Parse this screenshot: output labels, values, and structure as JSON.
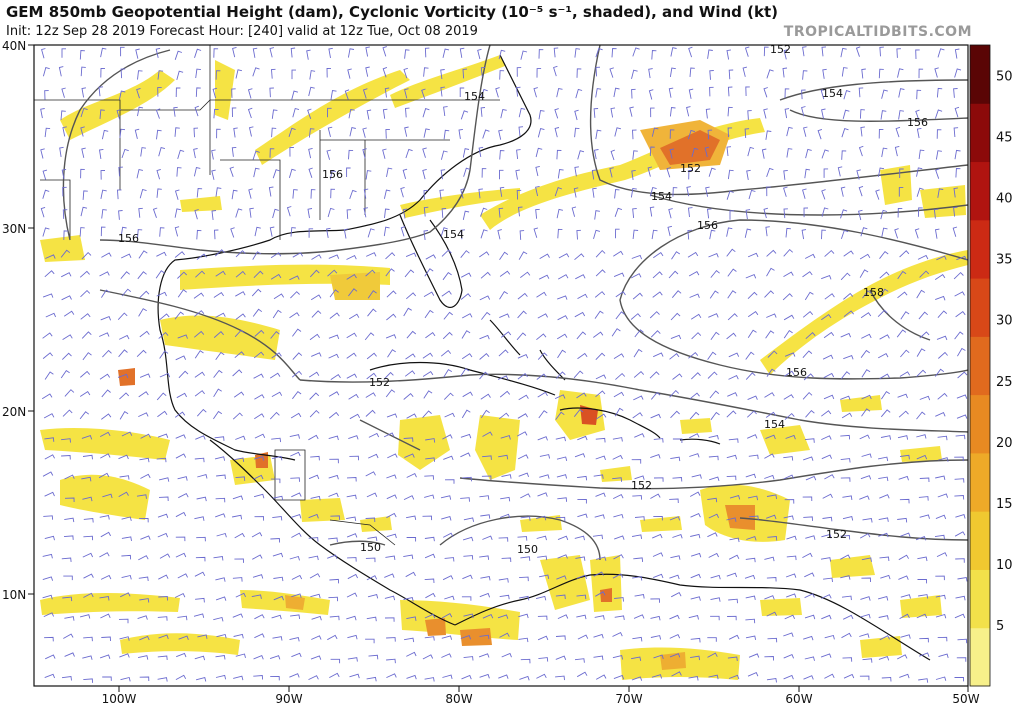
{
  "header": {
    "title": "GEM 850mb Geopotential Height (dam), Cyclonic Vorticity (10⁻⁵ s⁻¹, shaded), and Wind (kt)",
    "init": "Init: 12z Sep 28 2019   Forecast Hour: [240]   valid at 12z Tue, Oct 08 2019",
    "brand": "TROPICALTIDBITS.COM"
  },
  "axes": {
    "lat_labels": [
      "40N",
      "30N",
      "20N",
      "10N"
    ],
    "lon_labels": [
      "100W",
      "90W",
      "80W",
      "70W",
      "60W",
      "50W"
    ]
  },
  "colorbar": {
    "ticks": [
      "50",
      "45",
      "40",
      "35",
      "30",
      "25",
      "20",
      "15",
      "10",
      "5"
    ],
    "colors": [
      "#f7f08a",
      "#f2e04a",
      "#f0c830",
      "#eeaa28",
      "#e88a22",
      "#e06a1e",
      "#d84818",
      "#cc2a14",
      "#b01410",
      "#8c0a0a",
      "#5a0505"
    ]
  },
  "contours": {
    "labels": [
      "152",
      "154",
      "156",
      "154",
      "156",
      "152",
      "154",
      "156",
      "154",
      "158",
      "152",
      "156",
      "154",
      "152",
      "152",
      "150",
      "150",
      "156"
    ]
  }
}
